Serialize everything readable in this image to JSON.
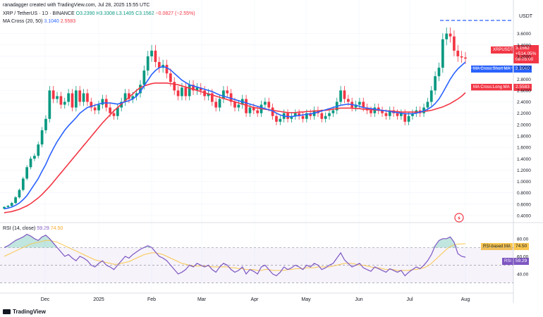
{
  "header": {
    "credit": "ranadagger created with TradingView.com, Jul 28, 2025 15:55 UTC",
    "symbol": "XRP / TetherUS · 1D · BINANCE",
    "open": "O3.2390",
    "high": "H3.3308",
    "low": "L3.1405",
    "close": "C3.1562",
    "change": "−0.0827 (−2.55%)",
    "ma_label": "MA Cross (20, 50)",
    "ma_short": "3.1040",
    "ma_long": "2.5583"
  },
  "currency": "USDT",
  "price_tag": {
    "symbol": "XRPUSDT",
    "price": "3.1562",
    "change": "+514.05%",
    "countdown": "08:05:00"
  },
  "ma_tags": {
    "short_label": "MA Cross:Short MA",
    "short_value": "3.1040",
    "long_label": "MA Cross:Long MA",
    "long_value": "2.5583"
  },
  "rsi": {
    "label": "RSI (14, close)",
    "value1": "59.29",
    "value2": "74.50",
    "ma_label": "RSI-based MA",
    "ma_value": "74.50",
    "rsi_tag": "RSI",
    "rsi_value": "59.29",
    "levels": [
      70,
      50,
      30
    ],
    "scale_labels": [
      "80.00",
      "60.00",
      "40.00"
    ]
  },
  "logo_text": "TradingView",
  "colors": {
    "up": "#089981",
    "down": "#f23645",
    "ma_short": "#2962ff",
    "ma_long": "#f23645",
    "rsi": "#7e57c2",
    "rsi_ma": "#f9c74f"
  },
  "chart_data": {
    "type": "candlestick",
    "x_labels": [
      "Dec",
      "2025",
      "Feb",
      "Mar",
      "Apr",
      "May",
      "Jun",
      "Jul",
      "Aug"
    ],
    "y_ticks": [
      "3.6000",
      "3.4000",
      "3.2000",
      "3.0000",
      "2.8000",
      "2.6000",
      "2.4000",
      "2.2000",
      "2.0000",
      "1.8000",
      "1.6000",
      "1.4000",
      "1.2000",
      "1.0000",
      "0.8000",
      "0.6000",
      "0.4000"
    ],
    "ylim": [
      0.35,
      3.72
    ],
    "close_series": [
      0.55,
      0.57,
      0.62,
      0.72,
      0.85,
      1.05,
      1.25,
      1.4,
      1.45,
      1.65,
      1.9,
      2.1,
      2.6,
      2.45,
      2.5,
      2.35,
      2.4,
      2.55,
      2.3,
      2.6,
      2.4,
      2.55,
      2.4,
      2.3,
      2.25,
      2.35,
      2.45,
      2.3,
      2.2,
      2.15,
      2.3,
      2.4,
      2.55,
      2.45,
      2.5,
      2.55,
      2.7,
      2.95,
      3.2,
      3.3,
      3.1,
      3.0,
      3.05,
      2.9,
      2.75,
      2.6,
      2.5,
      2.65,
      2.5,
      2.7,
      2.6,
      2.65,
      2.6,
      2.5,
      2.55,
      2.4,
      2.3,
      2.45,
      2.6,
      2.55,
      2.4,
      2.3,
      2.35,
      2.45,
      2.2,
      2.3,
      2.25,
      2.2,
      2.35,
      2.4,
      2.3,
      2.15,
      2.05,
      2.1,
      2.2,
      2.1,
      2.15,
      2.2,
      2.15,
      2.1,
      2.2,
      2.15,
      2.25,
      2.2,
      2.1,
      2.15,
      2.2,
      2.25,
      2.4,
      2.6,
      2.45,
      2.4,
      2.3,
      2.35,
      2.4,
      2.3,
      2.25,
      2.2,
      2.3,
      2.25,
      2.2,
      2.15,
      2.25,
      2.2,
      2.15,
      2.2,
      2.05,
      2.15,
      2.2,
      2.25,
      2.2,
      2.3,
      2.4,
      2.6,
      2.85,
      3.0,
      3.5,
      3.6,
      3.55,
      3.3,
      3.2,
      3.18,
      3.16
    ],
    "ma_short_series": [
      0.52,
      0.53,
      0.55,
      0.58,
      0.62,
      0.68,
      0.75,
      0.85,
      0.95,
      1.05,
      1.18,
      1.3,
      1.45,
      1.58,
      1.7,
      1.8,
      1.9,
      1.98,
      2.05,
      2.12,
      2.2,
      2.25,
      2.3,
      2.32,
      2.34,
      2.36,
      2.38,
      2.38,
      2.38,
      2.37,
      2.36,
      2.38,
      2.4,
      2.42,
      2.45,
      2.5,
      2.58,
      2.68,
      2.78,
      2.88,
      2.95,
      3.0,
      3.02,
      3.0,
      2.96,
      2.9,
      2.84,
      2.78,
      2.74,
      2.7,
      2.68,
      2.66,
      2.64,
      2.62,
      2.6,
      2.58,
      2.55,
      2.52,
      2.5,
      2.48,
      2.46,
      2.44,
      2.42,
      2.4,
      2.38,
      2.36,
      2.34,
      2.32,
      2.3,
      2.28,
      2.26,
      2.24,
      2.2,
      2.17,
      2.15,
      2.14,
      2.14,
      2.15,
      2.16,
      2.17,
      2.18,
      2.19,
      2.2,
      2.22,
      2.24,
      2.26,
      2.28,
      2.3,
      2.32,
      2.34,
      2.35,
      2.36,
      2.35,
      2.34,
      2.32,
      2.3,
      2.29,
      2.28,
      2.27,
      2.26,
      2.25,
      2.24,
      2.23,
      2.22,
      2.21,
      2.2,
      2.19,
      2.19,
      2.19,
      2.2,
      2.22,
      2.24,
      2.27,
      2.31,
      2.37,
      2.45,
      2.56,
      2.68,
      2.8,
      2.9,
      2.98,
      3.04,
      3.1
    ],
    "ma_long_series": [
      0.45,
      0.46,
      0.47,
      0.49,
      0.51,
      0.54,
      0.57,
      0.61,
      0.66,
      0.71,
      0.77,
      0.84,
      0.91,
      0.99,
      1.07,
      1.15,
      1.23,
      1.31,
      1.39,
      1.47,
      1.55,
      1.63,
      1.71,
      1.79,
      1.87,
      1.95,
      2.03,
      2.1,
      2.17,
      2.24,
      2.3,
      2.36,
      2.42,
      2.48,
      2.54,
      2.6,
      2.65,
      2.68,
      2.7,
      2.72,
      2.73,
      2.73,
      2.73,
      2.73,
      2.72,
      2.71,
      2.7,
      2.68,
      2.66,
      2.64,
      2.62,
      2.6,
      2.58,
      2.56,
      2.54,
      2.52,
      2.5,
      2.48,
      2.46,
      2.44,
      2.42,
      2.4,
      2.38,
      2.36,
      2.34,
      2.32,
      2.3,
      2.29,
      2.28,
      2.27,
      2.26,
      2.25,
      2.24,
      2.23,
      2.22,
      2.21,
      2.21,
      2.21,
      2.22,
      2.22,
      2.23,
      2.23,
      2.24,
      2.24,
      2.25,
      2.25,
      2.26,
      2.27,
      2.28,
      2.29,
      2.29,
      2.29,
      2.29,
      2.28,
      2.28,
      2.27,
      2.27,
      2.26,
      2.26,
      2.25,
      2.25,
      2.24,
      2.24,
      2.23,
      2.23,
      2.22,
      2.22,
      2.22,
      2.22,
      2.22,
      2.22,
      2.23,
      2.24,
      2.25,
      2.27,
      2.29,
      2.31,
      2.34,
      2.37,
      2.41,
      2.45,
      2.5,
      2.56
    ],
    "rsi_series": [
      70,
      72,
      75,
      78,
      80,
      82,
      85,
      83,
      80,
      78,
      82,
      84,
      80,
      75,
      70,
      65,
      60,
      62,
      58,
      55,
      60,
      58,
      55,
      50,
      48,
      52,
      55,
      50,
      48,
      45,
      50,
      55,
      60,
      58,
      62,
      65,
      68,
      70,
      72,
      70,
      65,
      60,
      58,
      55,
      50,
      45,
      40,
      42,
      45,
      50,
      48,
      52,
      50,
      48,
      50,
      45,
      42,
      48,
      52,
      50,
      45,
      42,
      44,
      48,
      40,
      45,
      43,
      40,
      48,
      50,
      45,
      40,
      38,
      42,
      48,
      45,
      47,
      50,
      48,
      45,
      50,
      48,
      52,
      50,
      45,
      47,
      50,
      52,
      58,
      64,
      56,
      52,
      48,
      50,
      52,
      47,
      45,
      43,
      48,
      46,
      44,
      42,
      46,
      44,
      42,
      44,
      38,
      42,
      45,
      48,
      46,
      50,
      55,
      62,
      72,
      78,
      80,
      80,
      82,
      76,
      63,
      60,
      59
    ],
    "rsi_ma_series": [
      60,
      62,
      64,
      66,
      68,
      70,
      72,
      74,
      75,
      76,
      77,
      78,
      78,
      77,
      76,
      74,
      72,
      70,
      68,
      66,
      64,
      62,
      60,
      58,
      56,
      55,
      54,
      53,
      52,
      51,
      51,
      52,
      53,
      54,
      56,
      58,
      60,
      62,
      63,
      64,
      64,
      63,
      62,
      60,
      58,
      56,
      54,
      52,
      51,
      50,
      49,
      49,
      49,
      49,
      49,
      48,
      48,
      48,
      48,
      48,
      47,
      47,
      46,
      46,
      45,
      45,
      45,
      44,
      44,
      45,
      45,
      44,
      44,
      44,
      44,
      45,
      45,
      46,
      46,
      46,
      47,
      47,
      47,
      48,
      48,
      48,
      48,
      49,
      50,
      51,
      52,
      52,
      52,
      51,
      50,
      50,
      49,
      48,
      47,
      47,
      46,
      45,
      45,
      45,
      44,
      44,
      44,
      44,
      45,
      45,
      46,
      47,
      49,
      52,
      56,
      60,
      64,
      68,
      71,
      73,
      74,
      74,
      74.5
    ]
  }
}
